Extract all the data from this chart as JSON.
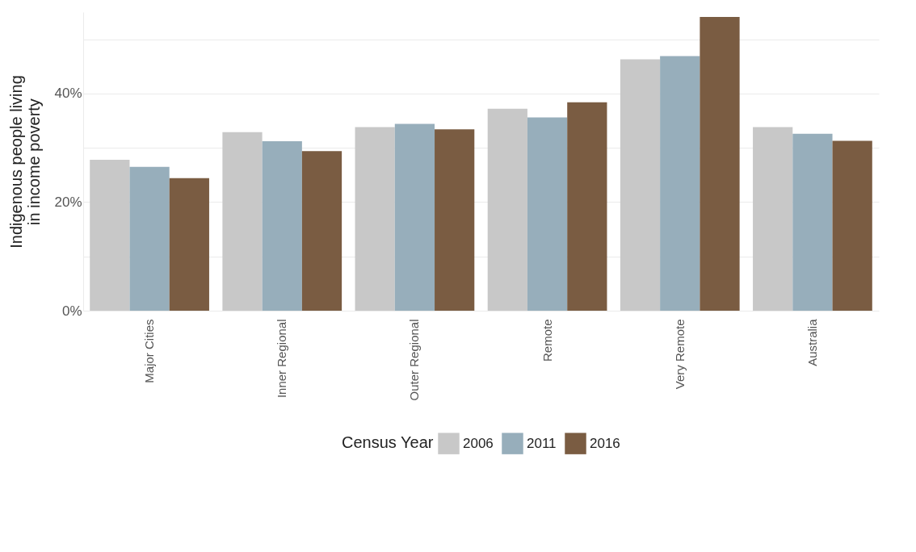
{
  "chart_data": {
    "type": "bar",
    "ylabel": "Indigenous people living\nin income poverty",
    "legend_title": "Census Year",
    "categories": [
      "Major Cities",
      "Inner Regional",
      "Outer Regional",
      "Remote",
      "Very Remote",
      "Australia"
    ],
    "series": [
      {
        "name": "2006",
        "color": "#c8c8c8",
        "values": [
          27.8,
          32.9,
          33.8,
          37.2,
          46.3,
          33.8
        ]
      },
      {
        "name": "2011",
        "color": "#97aebb",
        "values": [
          26.5,
          31.2,
          34.4,
          35.6,
          46.9,
          32.6
        ]
      },
      {
        "name": "2016",
        "color": "#7a5c42",
        "values": [
          24.4,
          29.4,
          33.4,
          38.4,
          54.1,
          31.3
        ]
      }
    ],
    "ylim": [
      0,
      55
    ],
    "yticks": [
      {
        "value": 0,
        "label": "0%"
      },
      {
        "value": 10,
        "label": null
      },
      {
        "value": 20,
        "label": "20%"
      },
      {
        "value": 30,
        "label": null
      },
      {
        "value": 40,
        "label": "40%"
      },
      {
        "value": 50,
        "label": null
      }
    ],
    "grid": "y",
    "legend": "bottom"
  }
}
